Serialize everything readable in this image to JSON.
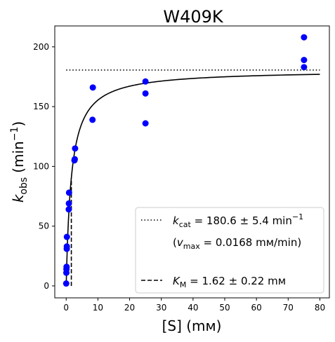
{
  "chart_data": {
    "type": "scatter",
    "title": "W409K",
    "xlabel": "[S] (mм)",
    "ylabel_main": "k",
    "ylabel_sub": "obs",
    "ylabel_unit_prefix": "(min",
    "ylabel_unit_sup": "−1",
    "ylabel_unit_suffix": ")",
    "xlim": [
      -3.6,
      83
    ],
    "ylim": [
      -10,
      217.5
    ],
    "xticks": [
      0,
      10,
      20,
      30,
      40,
      50,
      60,
      70,
      80
    ],
    "yticks": [
      0,
      50,
      100,
      150,
      200
    ],
    "grid": false,
    "legend_position": "lower-right",
    "points": [
      {
        "x": 0.0,
        "y": 2
      },
      {
        "x": 0.05,
        "y": 11
      },
      {
        "x": 0.08,
        "y": 14
      },
      {
        "x": 0.12,
        "y": 16
      },
      {
        "x": 0.18,
        "y": 31
      },
      {
        "x": 0.2,
        "y": 33
      },
      {
        "x": 0.22,
        "y": 41
      },
      {
        "x": 0.8,
        "y": 64
      },
      {
        "x": 0.85,
        "y": 69
      },
      {
        "x": 0.9,
        "y": 78
      },
      {
        "x": 2.6,
        "y": 105
      },
      {
        "x": 2.7,
        "y": 106
      },
      {
        "x": 2.8,
        "y": 115
      },
      {
        "x": 8.3,
        "y": 139
      },
      {
        "x": 8.4,
        "y": 166
      },
      {
        "x": 25.0,
        "y": 136
      },
      {
        "x": 25.0,
        "y": 161
      },
      {
        "x": 25.0,
        "y": 171
      },
      {
        "x": 75.0,
        "y": 183
      },
      {
        "x": 75.0,
        "y": 189
      },
      {
        "x": 75.0,
        "y": 208
      }
    ],
    "fit": {
      "kcat": 180.6,
      "km": 1.62,
      "x_range": [
        0.02,
        80
      ]
    },
    "kcat_line": {
      "y": 180.6,
      "x_range": [
        0,
        80
      ]
    },
    "km_line": {
      "x": 1.62,
      "y_range": [
        0,
        90.3
      ]
    },
    "legend": {
      "kcat_sym": "k",
      "kcat_sub": "cat",
      "kcat_text": " = 180.6 ± 5.4 min",
      "kcat_sup": "−1",
      "vmax_open": "(",
      "vmax_sym": "v",
      "vmax_sub": "max",
      "vmax_text": " = 0.0168 mм/min)",
      "km_sym": "K",
      "km_sub": "M",
      "km_text": " = 1.62 ± 0.22 mм"
    },
    "colors": {
      "points": "#0000ff",
      "lines": "#000000"
    }
  }
}
